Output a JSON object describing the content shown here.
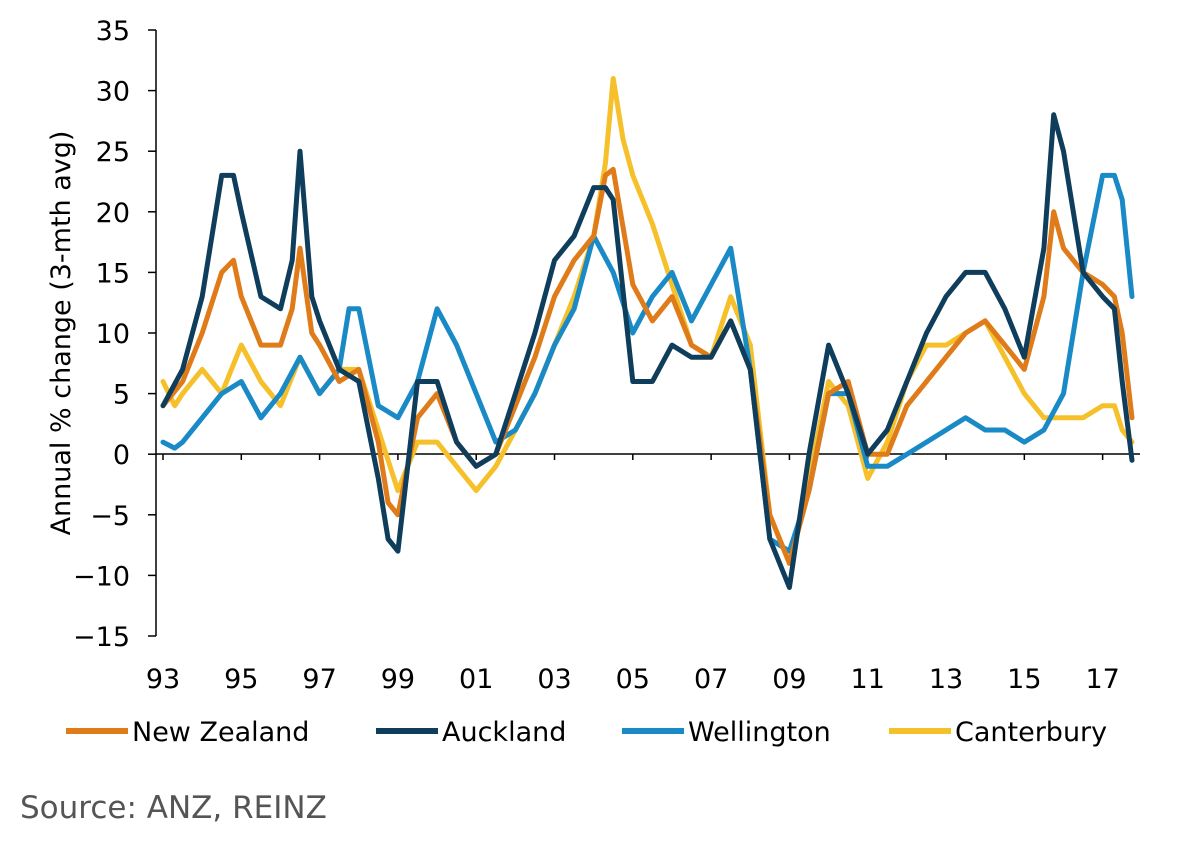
{
  "source": "Source: ANZ, REINZ",
  "chart_data": {
    "type": "line",
    "ylabel": "Annual % change (3-mth avg)",
    "xlabel": "",
    "ylim": [
      -15,
      35
    ],
    "yticks": [
      -15,
      -10,
      -5,
      0,
      5,
      10,
      15,
      20,
      25,
      30,
      35
    ],
    "xlim": [
      1993.0,
      2017.75
    ],
    "xticks": [
      1993,
      1995,
      1997,
      1999,
      2001,
      2003,
      2005,
      2007,
      2009,
      2011,
      2013,
      2015,
      2017
    ],
    "xtick_labels": [
      "93",
      "95",
      "97",
      "99",
      "01",
      "03",
      "05",
      "07",
      "09",
      "11",
      "13",
      "15",
      "17"
    ],
    "legend_position": "bottom",
    "grid": false,
    "series": [
      {
        "name": "New Zealand",
        "color": "#e07b1a",
        "x": [
          1993.0,
          1993.5,
          1994.0,
          1994.5,
          1994.8,
          1995.0,
          1995.5,
          1996.0,
          1996.3,
          1996.5,
          1996.8,
          1997.0,
          1997.5,
          1998.0,
          1998.5,
          1998.75,
          1999.0,
          1999.5,
          2000.0,
          2000.5,
          2001.0,
          2001.5,
          2002.0,
          2002.5,
          2003.0,
          2003.5,
          2004.0,
          2004.3,
          2004.5,
          2005.0,
          2005.5,
          2006.0,
          2006.5,
          2007.0,
          2007.5,
          2008.0,
          2008.5,
          2009.0,
          2009.5,
          2010.0,
          2010.5,
          2011.0,
          2011.5,
          2012.0,
          2012.5,
          2013.0,
          2013.5,
          2014.0,
          2014.5,
          2015.0,
          2015.5,
          2015.75,
          2016.0,
          2016.5,
          2017.0,
          2017.3,
          2017.5,
          2017.75
        ],
        "values": [
          4,
          6,
          10,
          15,
          16,
          13,
          9,
          9,
          12,
          17,
          10,
          9,
          6,
          7,
          1,
          -4,
          -5,
          3,
          5,
          1,
          -1,
          0,
          4,
          8,
          13,
          16,
          18,
          23,
          23.5,
          14,
          11,
          13,
          9,
          8,
          11,
          7,
          -5,
          -9,
          -3,
          5,
          6,
          0,
          0,
          4,
          6,
          8,
          10,
          11,
          9,
          7,
          13,
          20,
          17,
          15,
          14,
          13,
          10,
          3
        ]
      },
      {
        "name": "Auckland",
        "color": "#0f3d5c",
        "x": [
          1993.0,
          1993.5,
          1994.0,
          1994.5,
          1994.8,
          1995.0,
          1995.5,
          1996.0,
          1996.3,
          1996.5,
          1996.8,
          1997.0,
          1997.5,
          1998.0,
          1998.5,
          1998.75,
          1999.0,
          1999.5,
          2000.0,
          2000.5,
          2001.0,
          2001.5,
          2002.0,
          2002.5,
          2003.0,
          2003.5,
          2004.0,
          2004.3,
          2004.5,
          2005.0,
          2005.5,
          2006.0,
          2006.5,
          2007.0,
          2007.5,
          2008.0,
          2008.5,
          2009.0,
          2009.5,
          2010.0,
          2010.5,
          2011.0,
          2011.5,
          2012.0,
          2012.5,
          2013.0,
          2013.5,
          2014.0,
          2014.5,
          2015.0,
          2015.5,
          2015.75,
          2016.0,
          2016.5,
          2017.0,
          2017.3,
          2017.5,
          2017.75
        ],
        "values": [
          4,
          7,
          13,
          23,
          23,
          20,
          13,
          12,
          16,
          25,
          13,
          11,
          7,
          6,
          -2,
          -7,
          -8,
          6,
          6,
          1,
          -1,
          0,
          5,
          10,
          16,
          18,
          22,
          22,
          21,
          6,
          6,
          9,
          8,
          8,
          11,
          7,
          -7,
          -11,
          0,
          9,
          5,
          0,
          2,
          6,
          10,
          13,
          15,
          15,
          12,
          8,
          17,
          28,
          25,
          15,
          13,
          12,
          6,
          -0.5
        ]
      },
      {
        "name": "Wellington",
        "color": "#1a8ac6",
        "x": [
          1993.0,
          1993.3,
          1993.5,
          1994.0,
          1994.5,
          1995.0,
          1995.5,
          1996.0,
          1996.5,
          1997.0,
          1997.5,
          1997.75,
          1998.0,
          1998.5,
          1999.0,
          1999.5,
          2000.0,
          2000.5,
          2001.0,
          2001.5,
          2002.0,
          2002.5,
          2003.0,
          2003.5,
          2004.0,
          2004.5,
          2005.0,
          2005.5,
          2006.0,
          2006.5,
          2007.0,
          2007.5,
          2008.0,
          2008.5,
          2009.0,
          2009.5,
          2010.0,
          2010.5,
          2011.0,
          2011.5,
          2012.0,
          2012.5,
          2013.0,
          2013.5,
          2014.0,
          2014.5,
          2015.0,
          2015.5,
          2016.0,
          2016.5,
          2017.0,
          2017.3,
          2017.5,
          2017.75
        ],
        "values": [
          1,
          0.5,
          1,
          3,
          5,
          6,
          3,
          5,
          8,
          5,
          7,
          12,
          12,
          4,
          3,
          6,
          12,
          9,
          5,
          1,
          2,
          5,
          9,
          12,
          18,
          15,
          10,
          13,
          15,
          11,
          14,
          17,
          7,
          -7,
          -8,
          -3,
          5,
          5,
          -1,
          -1,
          0,
          1,
          2,
          3,
          2,
          2,
          1,
          2,
          5,
          15,
          23,
          23,
          21,
          13
        ]
      },
      {
        "name": "Canterbury",
        "color": "#f5c02a",
        "x": [
          1993.0,
          1993.3,
          1993.5,
          1994.0,
          1994.5,
          1995.0,
          1995.5,
          1996.0,
          1996.5,
          1997.0,
          1997.5,
          1998.0,
          1998.5,
          1999.0,
          1999.5,
          2000.0,
          2000.5,
          2001.0,
          2001.5,
          2002.0,
          2002.5,
          2003.0,
          2003.5,
          2004.0,
          2004.3,
          2004.5,
          2004.75,
          2005.0,
          2005.5,
          2006.0,
          2006.5,
          2007.0,
          2007.5,
          2008.0,
          2008.5,
          2009.0,
          2009.5,
          2010.0,
          2010.5,
          2011.0,
          2011.5,
          2012.0,
          2012.5,
          2013.0,
          2013.5,
          2014.0,
          2014.5,
          2015.0,
          2015.5,
          2016.0,
          2016.5,
          2017.0,
          2017.3,
          2017.5,
          2017.75
        ],
        "values": [
          6,
          4,
          5,
          7,
          5,
          9,
          6,
          4,
          8,
          5,
          7,
          7,
          2,
          -3,
          1,
          1,
          -1,
          -3,
          -1,
          2,
          5,
          9,
          13,
          18,
          24,
          31,
          26,
          23,
          19,
          14,
          9,
          8,
          13,
          9,
          -5,
          -9,
          -2,
          6,
          4,
          -2,
          1,
          6,
          9,
          9,
          10,
          11,
          8,
          5,
          3,
          3,
          3,
          4,
          4,
          2,
          1
        ]
      }
    ]
  }
}
